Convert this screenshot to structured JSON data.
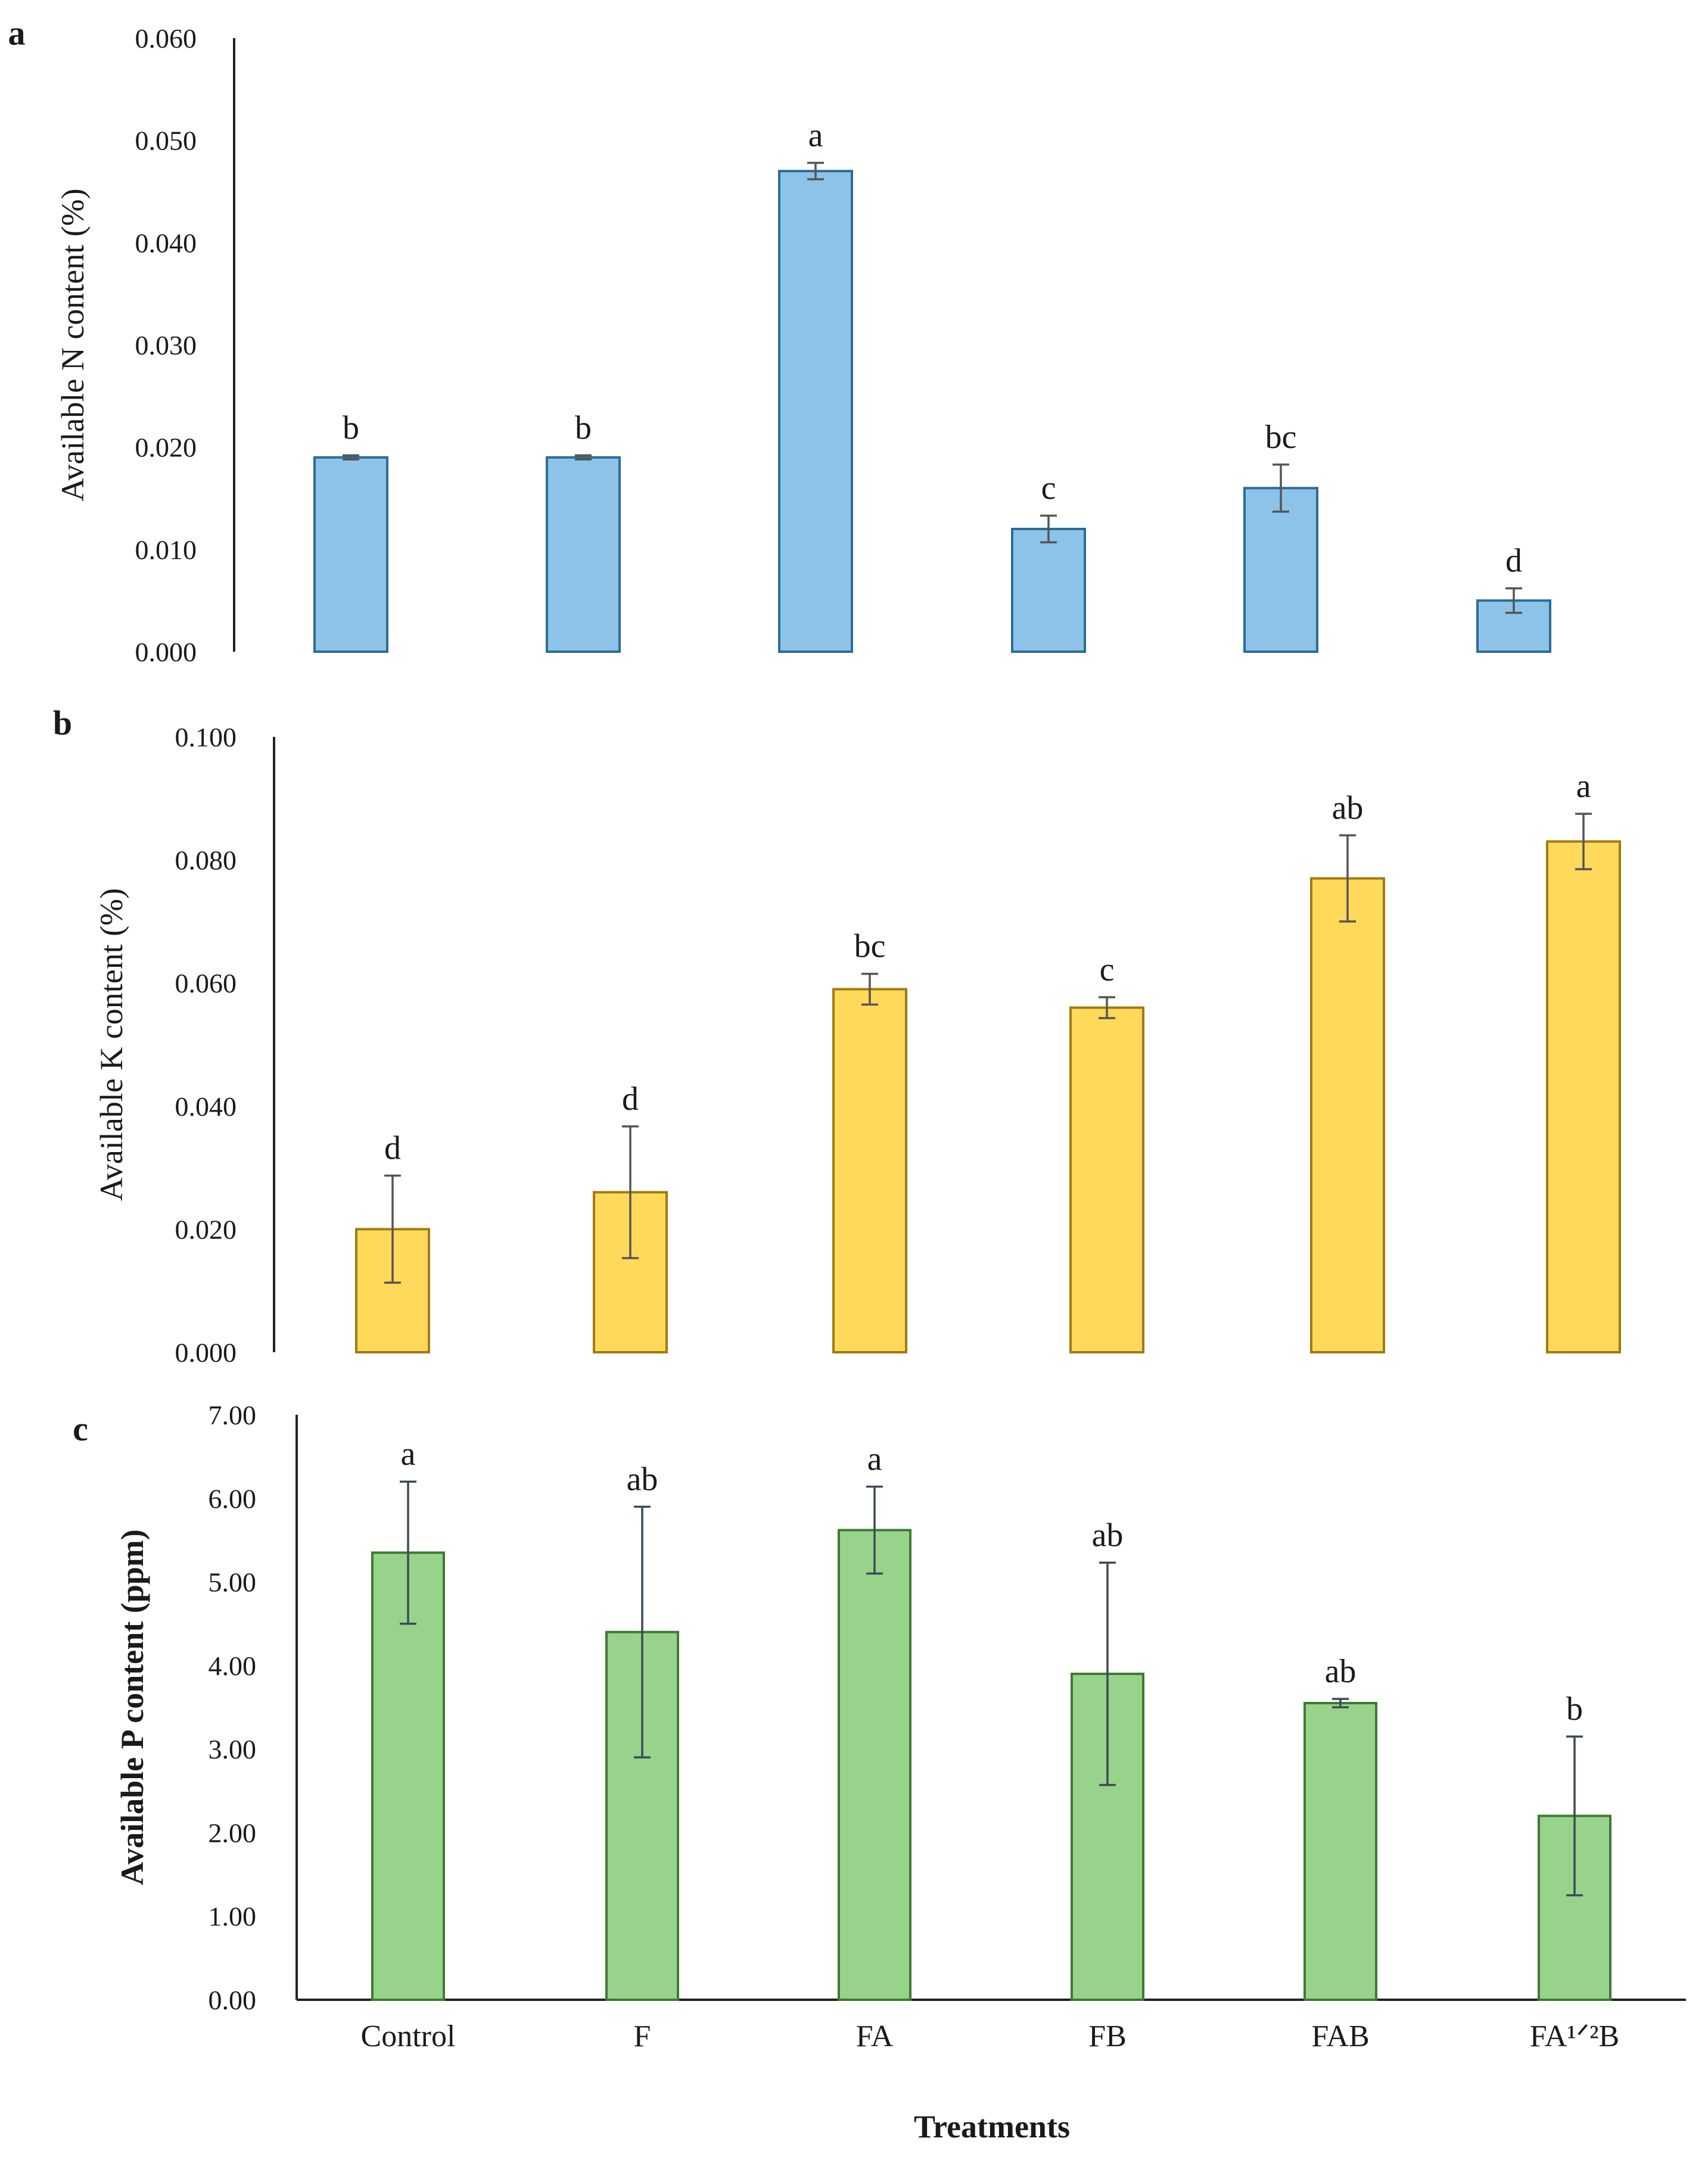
{
  "figure": {
    "x_title": "Treatments",
    "categories": [
      "Control",
      "F",
      "FA",
      "FB",
      "FAB",
      "FA¹ᐟ²B"
    ]
  },
  "chart_data": [
    {
      "type": "bar",
      "panel": "a",
      "ylabel": "Available N content (%)",
      "ylim": [
        0,
        0.06
      ],
      "ticks": [
        "0.000",
        "0.010",
        "0.020",
        "0.030",
        "0.040",
        "0.050",
        "0.060"
      ],
      "tick_values": [
        0,
        0.01,
        0.02,
        0.03,
        0.04,
        0.05,
        0.06
      ],
      "categories": [
        "Control",
        "F",
        "FA",
        "FB",
        "FAB",
        "FA¹ᐟ²B"
      ],
      "values": [
        0.019,
        0.019,
        0.047,
        0.012,
        0.016,
        0.005
      ],
      "errors": [
        0.0002,
        0.0002,
        0.0008,
        0.0013,
        0.0023,
        0.0012
      ],
      "letters": [
        "b",
        "b",
        "a",
        "c",
        "bc",
        "d"
      ],
      "fill": "#8dc3e9",
      "stroke": "#2e6c94",
      "err_color": "#555555"
    },
    {
      "type": "bar",
      "panel": "b",
      "ylabel": "Available K content (%)",
      "ylim": [
        0,
        0.1
      ],
      "ticks": [
        "0.000",
        "0.020",
        "0.040",
        "0.060",
        "0.080",
        "0.100"
      ],
      "tick_values": [
        0,
        0.02,
        0.04,
        0.06,
        0.08,
        0.1
      ],
      "categories": [
        "Control",
        "F",
        "FA",
        "FB",
        "FAB",
        "FA¹ᐟ²B"
      ],
      "values": [
        0.02,
        0.026,
        0.059,
        0.056,
        0.077,
        0.083
      ],
      "errors": [
        0.0087,
        0.0107,
        0.0025,
        0.0017,
        0.007,
        0.0045
      ],
      "letters": [
        "d",
        "d",
        "bc",
        "c",
        "ab",
        "a"
      ],
      "fill": "#ffd95a",
      "stroke": "#a07b12",
      "err_color": "#555555"
    },
    {
      "type": "bar",
      "panel": "c",
      "ylabel": "Available P content (ppm)",
      "ylim": [
        0,
        7
      ],
      "ticks": [
        "0.00",
        "1.00",
        "2.00",
        "3.00",
        "4.00",
        "5.00",
        "6.00",
        "7.00"
      ],
      "tick_values": [
        0,
        1,
        2,
        3,
        4,
        5,
        6,
        7
      ],
      "categories": [
        "Control",
        "F",
        "FA",
        "FB",
        "FAB",
        "FA¹ᐟ²B"
      ],
      "values": [
        5.35,
        4.4,
        5.62,
        3.9,
        3.55,
        2.2
      ],
      "errors": [
        0.85,
        1.5,
        0.52,
        1.33,
        0.05,
        0.95
      ],
      "letters": [
        "a",
        "ab",
        "a",
        "ab",
        "ab",
        "b"
      ],
      "fill": "#97d38a",
      "stroke": "#3f7a33",
      "err_color": "#3c4a55"
    }
  ]
}
